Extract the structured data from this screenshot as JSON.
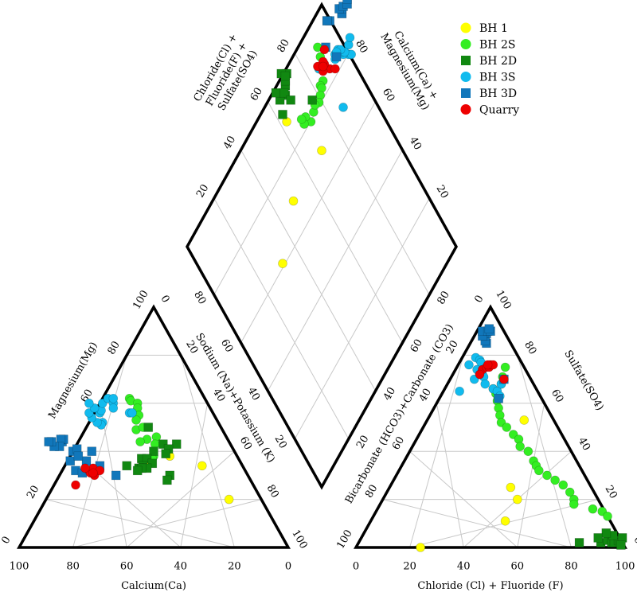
{
  "chart_data": {
    "type": "scatter",
    "subtype": "piper-diagram",
    "grid": true,
    "legend_position": "top-right",
    "axes": {
      "cation_bottom": "Calcium(Ca)",
      "cation_left": "Magnesium(Mg)",
      "cation_right": "Sodium (Na)+Potassium (K)",
      "anion_bottom": "Chloride (Cl) + Fluoride (F)",
      "anion_left": "Bicarbonate (HCO3)+Carbonate (CO3)",
      "anion_right": "Sulfate(SO4)",
      "diamond_left": "Chloride(Cl) +\nFluoride(F) +\nSulfate(SO4)",
      "diamond_right": "Calcium(Ca) +\nMagnesium(Mg)"
    },
    "ticks": [
      "0",
      "20",
      "40",
      "60",
      "80",
      "100"
    ],
    "series": [
      {
        "name": "BH 1",
        "color": "#ffff00",
        "marker": "circle",
        "cations": [
          [
            25,
            38
          ],
          [
            15,
            34
          ],
          [
            34,
            36
          ],
          [
            12,
            20
          ]
        ],
        "anions": [
          [
            36,
            53
          ],
          [
            45,
            25
          ],
          [
            50,
            20
          ],
          [
            50,
            11
          ],
          [
            24,
            0
          ]
        ]
      },
      {
        "name": "BH 2S",
        "color": "#33ee22",
        "marker": "circle",
        "cations": [
          [
            28,
            62
          ],
          [
            28,
            61
          ],
          [
            26,
            60
          ],
          [
            27,
            58
          ],
          [
            28,
            55
          ],
          [
            30,
            53
          ],
          [
            32,
            49
          ],
          [
            29,
            50
          ],
          [
            26,
            46
          ],
          [
            30,
            45
          ],
          [
            33,
            44
          ],
          [
            28,
            43
          ],
          [
            31,
            38
          ],
          [
            32,
            37
          ]
        ],
        "anions": [
          [
            18,
            75
          ],
          [
            19,
            71
          ],
          [
            20,
            68
          ],
          [
            18,
            66
          ],
          [
            20,
            64
          ],
          [
            22,
            61
          ],
          [
            24,
            58
          ],
          [
            26,
            55
          ],
          [
            28,
            52
          ],
          [
            31,
            50
          ],
          [
            35,
            47
          ],
          [
            38,
            45
          ],
          [
            40,
            42
          ],
          [
            44,
            40
          ],
          [
            48,
            36
          ],
          [
            50,
            34
          ],
          [
            52,
            32
          ],
          [
            56,
            30
          ],
          [
            60,
            28
          ],
          [
            64,
            26
          ],
          [
            68,
            23
          ],
          [
            71,
            20
          ],
          [
            72,
            18
          ],
          [
            80,
            16
          ],
          [
            84,
            15
          ],
          [
            87,
            13
          ]
        ]
      },
      {
        "name": "BH 2D",
        "color": "#118811",
        "marker": "square",
        "cations": [
          [
            27,
            50
          ],
          [
            20,
            43
          ],
          [
            25,
            43
          ],
          [
            24,
            41
          ],
          [
            30,
            40
          ],
          [
            26,
            39
          ],
          [
            36,
            37
          ],
          [
            34,
            37
          ],
          [
            37,
            34
          ],
          [
            33,
            35
          ],
          [
            36,
            33
          ],
          [
            39,
            33
          ],
          [
            43,
            34
          ],
          [
            29,
            30
          ],
          [
            38,
            33
          ],
          [
            40,
            32
          ],
          [
            31,
            28
          ]
        ],
        "anions": [
          [
            82,
            2
          ],
          [
            90,
            2
          ],
          [
            92,
            3
          ],
          [
            94,
            2
          ],
          [
            95,
            2
          ],
          [
            96,
            3
          ],
          [
            97,
            2
          ],
          [
            97,
            4
          ],
          [
            93,
            5
          ],
          [
            90,
            6
          ],
          [
            88,
            4
          ],
          [
            98,
            1
          ]
        ]
      },
      {
        "name": "BH 3S",
        "color": "#11bbee",
        "marker": "circle",
        "cations": [
          [
            43,
            52
          ],
          [
            44,
            51
          ],
          [
            45,
            52
          ],
          [
            46,
            54
          ],
          [
            46,
            56
          ],
          [
            42,
            56
          ],
          [
            41,
            57
          ],
          [
            43,
            58
          ],
          [
            44,
            60
          ],
          [
            39,
            60
          ],
          [
            36,
            62
          ],
          [
            35,
            60
          ],
          [
            36,
            58
          ],
          [
            31,
            56
          ],
          [
            30,
            56
          ],
          [
            34,
            62
          ]
        ],
        "anions": [
          [
            5,
            79
          ],
          [
            7,
            78
          ],
          [
            8,
            77
          ],
          [
            4,
            76
          ],
          [
            8,
            74
          ],
          [
            10,
            72
          ],
          [
            11,
            72
          ],
          [
            9,
            70
          ],
          [
            12,
            71
          ],
          [
            14,
            68
          ],
          [
            18,
            66
          ],
          [
            20,
            65
          ],
          [
            22,
            62
          ],
          [
            6,
            65
          ],
          [
            20,
            68
          ],
          [
            22,
            63
          ]
        ]
      },
      {
        "name": "BH 3D",
        "color": "#1177bb",
        "marker": "square",
        "cations": [
          [
            62,
            44
          ],
          [
            61,
            45
          ],
          [
            62,
            45
          ],
          [
            64,
            42
          ],
          [
            66,
            42
          ],
          [
            66,
            44
          ],
          [
            67,
            44
          ],
          [
            60,
            40
          ],
          [
            58,
            41
          ],
          [
            63,
            36
          ],
          [
            57,
            36
          ],
          [
            63,
            32
          ],
          [
            61,
            31
          ],
          [
            49,
            30
          ],
          [
            53,
            40
          ],
          [
            53,
            34
          ],
          [
            59,
            38
          ]
        ],
        "anions": [
          [
            6,
            85
          ],
          [
            5,
            86
          ],
          [
            4,
            88
          ],
          [
            4,
            89
          ],
          [
            3,
            89
          ],
          [
            3,
            88
          ],
          [
            2,
            90
          ],
          [
            4,
            90
          ],
          [
            5,
            90
          ],
          [
            4,
            91
          ],
          [
            20,
            70
          ],
          [
            22,
            62
          ]
        ]
      },
      {
        "name": "Quarry",
        "color": "#ee0000",
        "marker": "circle",
        "cations": [
          [
            58,
            32
          ],
          [
            57,
            30
          ],
          [
            58,
            31
          ],
          [
            56,
            33
          ],
          [
            54,
            32
          ],
          [
            57,
            31
          ],
          [
            59,
            33
          ],
          [
            66,
            26
          ]
        ],
        "anions": [
          [
            10,
            74
          ],
          [
            11,
            75
          ],
          [
            12,
            75
          ],
          [
            12,
            76
          ],
          [
            13,
            76
          ],
          [
            11,
            76
          ],
          [
            10,
            72
          ],
          [
            20,
            70
          ]
        ]
      }
    ]
  }
}
